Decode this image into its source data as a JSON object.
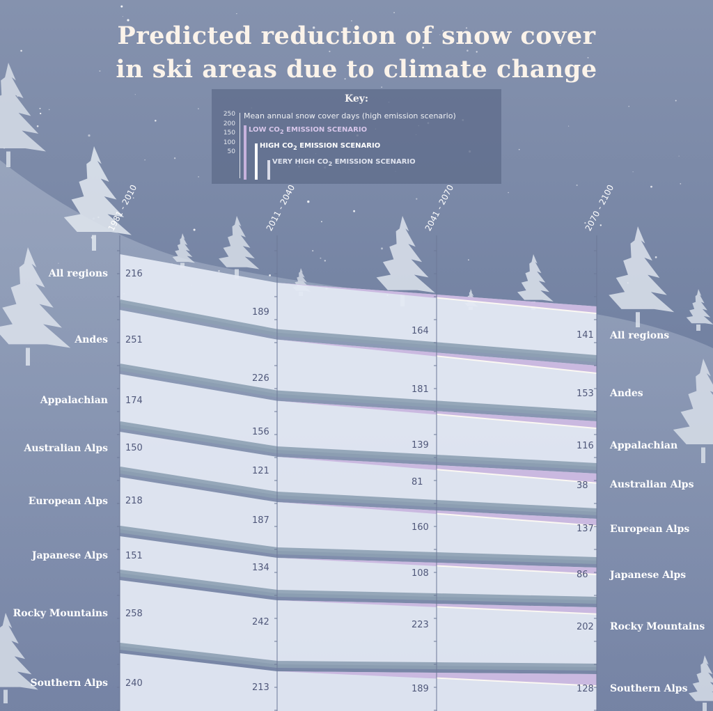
{
  "title_line1": "Predicted reduction of snow cover",
  "title_line2": "in ski areas due to climate change",
  "key": {
    "title": "Key:",
    "measure": "Mean annual snow cover days (high emission scenario)",
    "axis_ticks": [
      "250",
      "200",
      "150",
      "100",
      "50"
    ],
    "scenario_low": "LOW CO",
    "scenario_high": "HIGH CO",
    "scenario_very_high": "VERY HIGH CO",
    "scenario_suffix": " EMISSION SCENARIO",
    "subscript": "2",
    "color_low": "#c7b2dd",
    "color_high": "#ffffff",
    "color_very_high": "#d9dbe8"
  },
  "colors": {
    "background_top": "#7d8aa8",
    "background_bottom": "#5d6a8f",
    "band_fill": "#e4eaf4",
    "separator": "#8da0b3",
    "low_scenario": "#c7b2dd"
  },
  "chart_data": {
    "type": "area",
    "title": "Predicted reduction of snow cover in ski areas due to climate change",
    "periods": [
      "1981 - 2010",
      "2011 - 2040",
      "2041 - 2070",
      "2070 - 2100"
    ],
    "unit": "Mean annual snow cover days (high emission scenario)",
    "series": [
      {
        "name": "All regions",
        "values": [
          216,
          189,
          164,
          141
        ]
      },
      {
        "name": "Andes",
        "values": [
          251,
          226,
          181,
          153
        ]
      },
      {
        "name": "Appalachian",
        "values": [
          174,
          156,
          139,
          116
        ]
      },
      {
        "name": "Australian Alps",
        "values": [
          150,
          121,
          81,
          38
        ]
      },
      {
        "name": "European Alps",
        "values": [
          218,
          187,
          160,
          137
        ]
      },
      {
        "name": "Japanese Alps",
        "values": [
          151,
          134,
          108,
          86
        ]
      },
      {
        "name": "Rocky Mountains",
        "values": [
          258,
          242,
          223,
          202
        ]
      },
      {
        "name": "Southern Alps",
        "values": [
          240,
          213,
          189,
          128
        ]
      }
    ]
  }
}
